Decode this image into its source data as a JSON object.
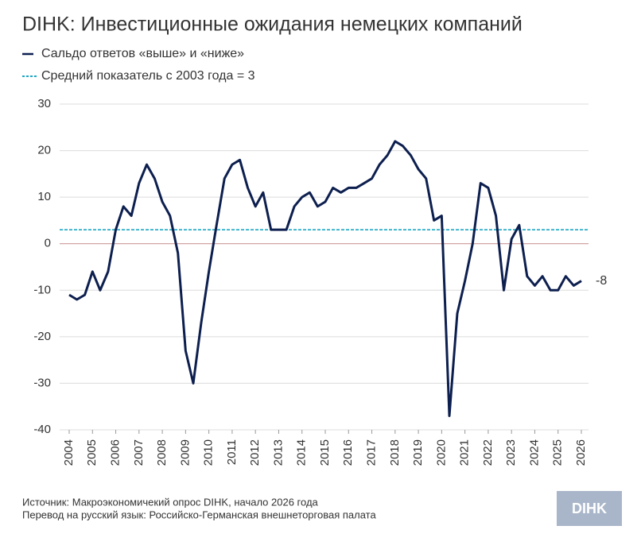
{
  "chart_data": {
    "type": "line",
    "title": "DIHK: Инвестиционные ожидания немецких компаний",
    "x": [
      2004,
      2004.33,
      2004.67,
      2005,
      2005.33,
      2005.67,
      2006,
      2006.33,
      2006.67,
      2007,
      2007.33,
      2007.67,
      2008,
      2008.33,
      2008.67,
      2009,
      2009.33,
      2009.67,
      2010,
      2010.33,
      2010.67,
      2011,
      2011.33,
      2011.67,
      2012,
      2012.33,
      2012.67,
      2013,
      2013.33,
      2013.67,
      2014,
      2014.33,
      2014.67,
      2015,
      2015.33,
      2015.67,
      2016,
      2016.33,
      2016.67,
      2017,
      2017.33,
      2017.67,
      2018,
      2018.33,
      2018.67,
      2019,
      2019.33,
      2019.67,
      2020,
      2020.33,
      2020.67,
      2021,
      2021.33,
      2021.67,
      2022,
      2022.33,
      2022.67,
      2023,
      2023.33,
      2023.67,
      2024,
      2024.33,
      2024.67,
      2025,
      2025.33,
      2025.67,
      2026
    ],
    "series": [
      {
        "name": "Сальдо ответов «выше» и «ниже»",
        "color": "#0d1f4f",
        "values": [
          -11,
          -12,
          -11,
          -6,
          -10,
          -6,
          3,
          8,
          6,
          13,
          17,
          14,
          9,
          6,
          -2,
          -23,
          -30,
          -17,
          -6,
          4,
          14,
          17,
          18,
          12,
          8,
          11,
          3,
          3,
          3,
          8,
          10,
          11,
          8,
          9,
          12,
          11,
          12,
          12,
          13,
          14,
          17,
          19,
          22,
          21,
          19,
          16,
          14,
          5,
          6,
          -37,
          -15,
          -8,
          0,
          13,
          12,
          6,
          -10,
          1,
          4,
          -7,
          -9,
          -7,
          -10,
          -10,
          -7,
          -9,
          -8
        ]
      }
    ],
    "average": {
      "name": "Средний показатель с 2003 года = 3",
      "value": 3,
      "color": "#1aa7c4"
    },
    "zero_line_color": "#c48a8a",
    "xlim": [
      2004,
      2026
    ],
    "xticks": [
      2004,
      2005,
      2006,
      2007,
      2008,
      2009,
      2010,
      2011,
      2012,
      2013,
      2014,
      2015,
      2016,
      2017,
      2018,
      2019,
      2020,
      2021,
      2022,
      2023,
      2024,
      2025,
      2026
    ],
    "ylim": [
      -40,
      30
    ],
    "yticks": [
      -40,
      -30,
      -20,
      -10,
      0,
      10,
      20,
      30
    ],
    "grid": true,
    "source": "Источник: Макроэкономичекий опрос DIHK, начало 2026 года",
    "translation": "Перевод на русский язык: Российско-Германская внешнеторговая палата",
    "logo": "DIHK"
  }
}
